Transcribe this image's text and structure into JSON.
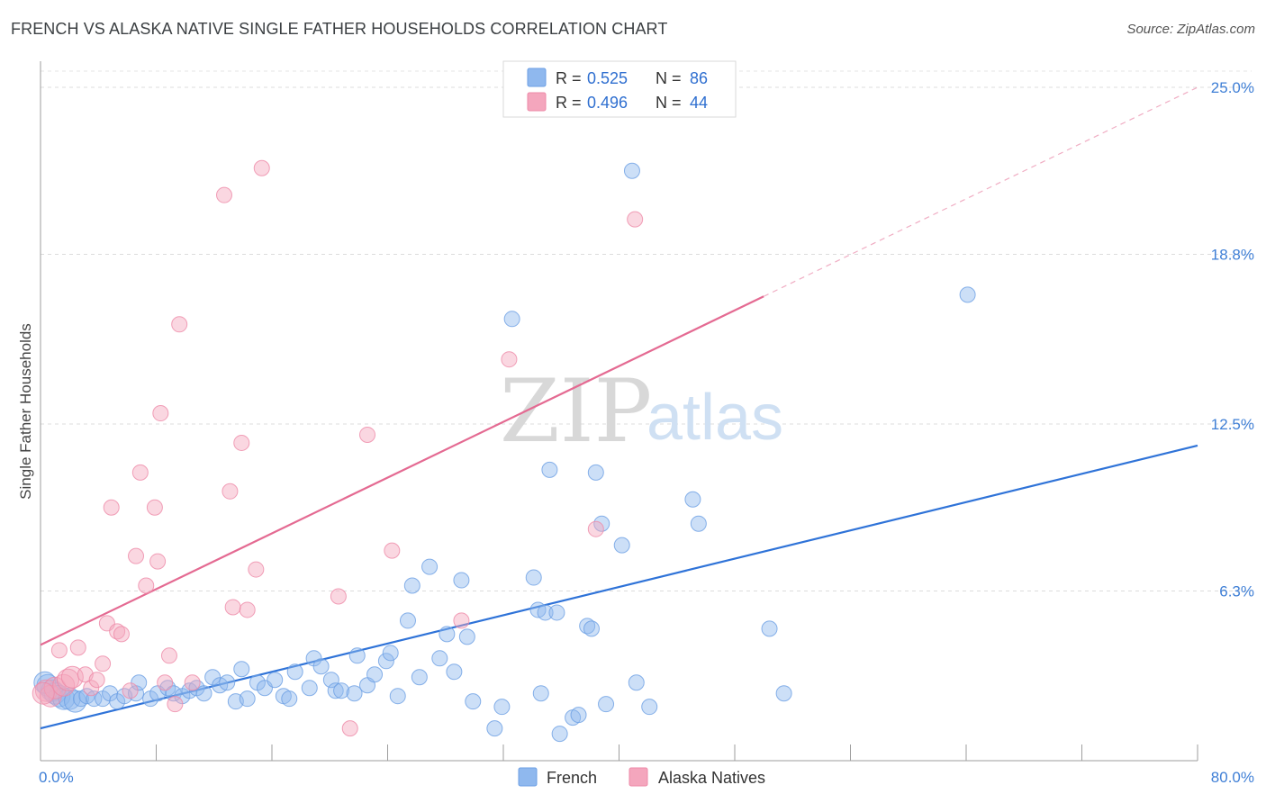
{
  "header": {
    "title": "FRENCH VS ALASKA NATIVE SINGLE FATHER HOUSEHOLDS CORRELATION CHART",
    "source": "Source: ZipAtlas.com"
  },
  "watermark": {
    "zip": "ZIP",
    "atlas": "atlas"
  },
  "stats": [
    {
      "r_label": "R =",
      "r_value": "0.525",
      "n_label": "N =",
      "n_value": "86",
      "color": "#8fb8ee"
    },
    {
      "r_label": "R =",
      "r_value": "0.496",
      "n_label": "N =",
      "n_value": "44",
      "color": "#f4a6bd"
    }
  ],
  "legend": [
    {
      "label": "French",
      "color": "#8fb8ee"
    },
    {
      "label": "Alaska Natives",
      "color": "#f4a6bd"
    }
  ],
  "chart_data": {
    "type": "scatter",
    "title": "FRENCH VS ALASKA NATIVE SINGLE FATHER HOUSEHOLDS CORRELATION CHART",
    "xlabel": "",
    "ylabel": "Single Father Households",
    "xlim": [
      0,
      80
    ],
    "ylim": [
      0,
      25.6
    ],
    "x_tick_labels": [
      "0.0%",
      "80.0%"
    ],
    "y_ticks": [
      6.3,
      12.5,
      18.8,
      25.0
    ],
    "y_tick_labels": [
      "6.3%",
      "12.5%",
      "18.8%",
      "25.0%"
    ],
    "grid": true,
    "legend_position": "bottom-center",
    "series": [
      {
        "name": "French",
        "color": "#8fb8ee",
        "line_color": "#2f73d8",
        "trend": {
          "x": [
            0,
            80
          ],
          "y": [
            1.2,
            11.7
          ],
          "dashed_from_x": null
        },
        "points": [
          [
            0.5,
            2.8
          ],
          [
            0.8,
            2.6
          ],
          [
            1,
            2.5
          ],
          [
            1.3,
            2.4
          ],
          [
            1.6,
            2.3
          ],
          [
            2,
            2.3
          ],
          [
            2.4,
            2.2
          ],
          [
            2.8,
            2.3
          ],
          [
            3.2,
            2.4
          ],
          [
            3.7,
            2.3
          ],
          [
            4.3,
            2.3
          ],
          [
            4.8,
            2.5
          ],
          [
            5.3,
            2.2
          ],
          [
            5.8,
            2.4
          ],
          [
            6.6,
            2.5
          ],
          [
            6.8,
            2.9
          ],
          [
            7.6,
            2.3
          ],
          [
            8.1,
            2.5
          ],
          [
            8.8,
            2.7
          ],
          [
            9.2,
            2.5
          ],
          [
            9.8,
            2.4
          ],
          [
            10.3,
            2.6
          ],
          [
            10.8,
            2.7
          ],
          [
            11.3,
            2.5
          ],
          [
            11.9,
            3.1
          ],
          [
            12.4,
            2.8
          ],
          [
            12.9,
            2.9
          ],
          [
            13.5,
            2.2
          ],
          [
            13.9,
            3.4
          ],
          [
            14.3,
            2.3
          ],
          [
            15,
            2.9
          ],
          [
            15.5,
            2.7
          ],
          [
            16.2,
            3
          ],
          [
            16.8,
            2.4
          ],
          [
            17.2,
            2.3
          ],
          [
            17.6,
            3.3
          ],
          [
            18.6,
            2.7
          ],
          [
            18.9,
            3.8
          ],
          [
            19.4,
            3.5
          ],
          [
            20.1,
            3
          ],
          [
            20.4,
            2.6
          ],
          [
            20.8,
            2.6
          ],
          [
            21.7,
            2.5
          ],
          [
            21.9,
            3.9
          ],
          [
            22.6,
            2.8
          ],
          [
            23.1,
            3.2
          ],
          [
            23.9,
            3.7
          ],
          [
            24.2,
            4
          ],
          [
            24.7,
            2.4
          ],
          [
            25.4,
            5.2
          ],
          [
            25.7,
            6.5
          ],
          [
            26.2,
            3.1
          ],
          [
            26.9,
            7.2
          ],
          [
            27.6,
            3.8
          ],
          [
            28.1,
            4.7
          ],
          [
            28.6,
            3.3
          ],
          [
            29.1,
            6.7
          ],
          [
            29.5,
            4.6
          ],
          [
            29.9,
            2.2
          ],
          [
            31.4,
            1.2
          ],
          [
            31.9,
            2
          ],
          [
            32.6,
            16.4
          ],
          [
            34.1,
            6.8
          ],
          [
            34.4,
            5.6
          ],
          [
            34.9,
            5.5
          ],
          [
            34.6,
            2.5
          ],
          [
            35.2,
            10.8
          ],
          [
            35.9,
            1
          ],
          [
            35.7,
            5.5
          ],
          [
            36.8,
            1.6
          ],
          [
            37.2,
            1.7
          ],
          [
            37.8,
            5
          ],
          [
            38.1,
            4.9
          ],
          [
            38.4,
            10.7
          ],
          [
            38.8,
            8.8
          ],
          [
            39.1,
            2.1
          ],
          [
            40.2,
            8
          ],
          [
            40.9,
            21.9
          ],
          [
            41.2,
            2.9
          ],
          [
            42.1,
            2
          ],
          [
            45.1,
            9.7
          ],
          [
            45.5,
            8.8
          ],
          [
            50.4,
            4.9
          ],
          [
            51.4,
            2.5
          ],
          [
            64.1,
            17.3
          ],
          [
            0.3,
            2.9
          ]
        ]
      },
      {
        "name": "Alaska Natives",
        "color": "#f4a6bd",
        "line_color": "#e46a92",
        "trend": {
          "x": [
            0,
            80
          ],
          "y": [
            4.3,
            25.0
          ],
          "dashed_from_x": 50
        },
        "points": [
          [
            0.4,
            2.6
          ],
          [
            0.7,
            2.4
          ],
          [
            1,
            2.7
          ],
          [
            1.3,
            4.1
          ],
          [
            1.6,
            2.8
          ],
          [
            1.9,
            3
          ],
          [
            2.2,
            3.1
          ],
          [
            2.6,
            4.2
          ],
          [
            3.1,
            3.2
          ],
          [
            3.5,
            2.7
          ],
          [
            3.9,
            3
          ],
          [
            4.3,
            3.6
          ],
          [
            4.6,
            5.1
          ],
          [
            4.9,
            9.4
          ],
          [
            5.3,
            4.8
          ],
          [
            5.6,
            4.7
          ],
          [
            6.2,
            2.6
          ],
          [
            6.6,
            7.6
          ],
          [
            6.9,
            10.7
          ],
          [
            7.3,
            6.5
          ],
          [
            7.9,
            9.4
          ],
          [
            8.1,
            7.4
          ],
          [
            8.3,
            12.9
          ],
          [
            8.6,
            2.9
          ],
          [
            8.9,
            3.9
          ],
          [
            9.3,
            2.1
          ],
          [
            9.6,
            16.2
          ],
          [
            10.5,
            2.9
          ],
          [
            12.7,
            21
          ],
          [
            13.1,
            10
          ],
          [
            13.3,
            5.7
          ],
          [
            13.9,
            11.8
          ],
          [
            14.3,
            5.6
          ],
          [
            14.9,
            7.1
          ],
          [
            15.3,
            22
          ],
          [
            20.6,
            6.1
          ],
          [
            21.4,
            1.2
          ],
          [
            22.6,
            12.1
          ],
          [
            24.3,
            7.8
          ],
          [
            29.1,
            5.2
          ],
          [
            32.4,
            14.9
          ],
          [
            38.4,
            8.6
          ],
          [
            41.1,
            20.1
          ],
          [
            0.2,
            2.5
          ]
        ]
      }
    ]
  }
}
